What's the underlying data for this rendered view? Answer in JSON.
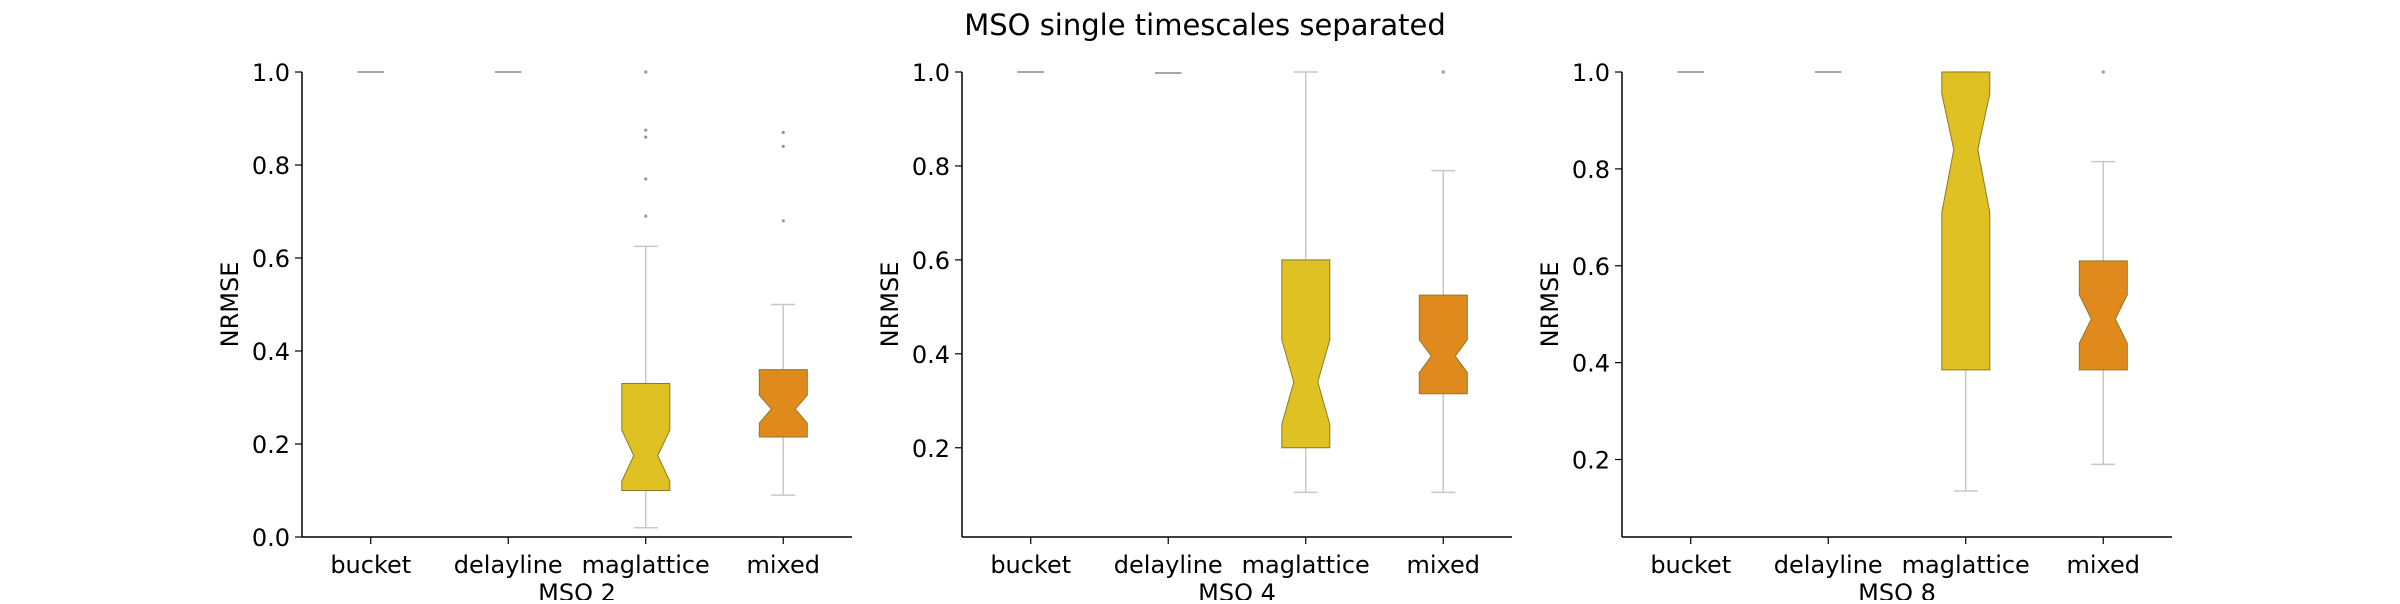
{
  "figure": {
    "title": "MSO single timescales separated"
  },
  "colors": {
    "axis": "#000000",
    "whisker": "#c8c8c8",
    "box_stroke": "#8a7a2a",
    "maglattice": "#dfc124",
    "mixed": "#e08a1e",
    "flier": "#999999"
  },
  "chart_data": [
    {
      "type": "box",
      "xlabel": "MSO 2",
      "ylabel": "NRMSE",
      "ylim": [
        0.0,
        1.0
      ],
      "yticks": [
        "0.0",
        "0.2",
        "0.4",
        "0.6",
        "0.8",
        "1.0"
      ],
      "ytick_values": [
        0.0,
        0.2,
        0.4,
        0.6,
        0.8,
        1.0
      ],
      "categories": [
        "bucket",
        "delayline",
        "maglattice",
        "mixed"
      ],
      "boxes": [
        {
          "category": "bucket",
          "min": 1.0,
          "q1": 1.0,
          "median": 1.0,
          "q3": 1.0,
          "max": 1.0,
          "notch_low": 1.0,
          "notch_high": 1.0,
          "fliers": [],
          "color": ""
        },
        {
          "category": "delayline",
          "min": 1.0,
          "q1": 1.0,
          "median": 1.0,
          "q3": 1.0,
          "max": 1.0,
          "notch_low": 1.0,
          "notch_high": 1.0,
          "fliers": [],
          "color": ""
        },
        {
          "category": "maglattice",
          "min": 0.02,
          "q1": 0.1,
          "median": 0.175,
          "q3": 0.33,
          "max": 0.625,
          "notch_low": 0.12,
          "notch_high": 0.23,
          "fliers": [
            0.69,
            0.77,
            0.86,
            0.875,
            1.0
          ],
          "color": "maglattice"
        },
        {
          "category": "mixed",
          "min": 0.09,
          "q1": 0.215,
          "median": 0.275,
          "q3": 0.36,
          "max": 0.5,
          "notch_low": 0.245,
          "notch_high": 0.305,
          "fliers": [
            0.68,
            0.84,
            0.87
          ],
          "color": "mixed"
        }
      ]
    },
    {
      "type": "box",
      "xlabel": "MSO 4",
      "ylabel": "NRMSE",
      "ylim": [
        0.01,
        1.0
      ],
      "yticks": [
        "0.2",
        "0.4",
        "0.6",
        "0.8",
        "1.0"
      ],
      "ytick_values": [
        0.2,
        0.4,
        0.6,
        0.8,
        1.0
      ],
      "categories": [
        "bucket",
        "delayline",
        "maglattice",
        "mixed"
      ],
      "boxes": [
        {
          "category": "bucket",
          "min": 1.0,
          "q1": 1.0,
          "median": 1.0,
          "q3": 1.0,
          "max": 1.0,
          "notch_low": 1.0,
          "notch_high": 1.0,
          "fliers": [],
          "color": ""
        },
        {
          "category": "delayline",
          "min": 0.998,
          "q1": 0.998,
          "median": 0.998,
          "q3": 0.998,
          "max": 0.998,
          "notch_low": 0.998,
          "notch_high": 0.998,
          "fliers": [],
          "color": ""
        },
        {
          "category": "maglattice",
          "min": 0.105,
          "q1": 0.2,
          "median": 0.34,
          "q3": 0.6,
          "max": 1.0,
          "notch_low": 0.25,
          "notch_high": 0.43,
          "fliers": [],
          "color": "maglattice"
        },
        {
          "category": "mixed",
          "min": 0.105,
          "q1": 0.315,
          "median": 0.395,
          "q3": 0.525,
          "max": 0.79,
          "notch_low": 0.36,
          "notch_high": 0.43,
          "fliers": [
            1.0
          ],
          "color": "mixed"
        }
      ]
    },
    {
      "type": "box",
      "xlabel": "MSO 8",
      "ylabel": "NRMSE",
      "ylim": [
        0.04,
        1.0
      ],
      "yticks": [
        "0.2",
        "0.4",
        "0.6",
        "0.8",
        "1.0"
      ],
      "ytick_values": [
        0.2,
        0.4,
        0.6,
        0.8,
        1.0
      ],
      "categories": [
        "bucket",
        "delayline",
        "maglattice",
        "mixed"
      ],
      "boxes": [
        {
          "category": "bucket",
          "min": 1.0,
          "q1": 1.0,
          "median": 1.0,
          "q3": 1.0,
          "max": 1.0,
          "notch_low": 1.0,
          "notch_high": 1.0,
          "fliers": [],
          "color": ""
        },
        {
          "category": "delayline",
          "min": 1.0,
          "q1": 1.0,
          "median": 1.0,
          "q3": 1.0,
          "max": 1.0,
          "notch_low": 1.0,
          "notch_high": 1.0,
          "fliers": [],
          "color": ""
        },
        {
          "category": "maglattice",
          "min": 0.135,
          "q1": 0.385,
          "median": 0.84,
          "q3": 1.0,
          "max": 1.0,
          "notch_low": 0.71,
          "notch_high": 0.955,
          "fliers": [],
          "color": "maglattice"
        },
        {
          "category": "mixed",
          "min": 0.19,
          "q1": 0.385,
          "median": 0.49,
          "q3": 0.61,
          "max": 0.815,
          "notch_low": 0.44,
          "notch_high": 0.54,
          "fliers": [
            1.0
          ],
          "color": "mixed"
        }
      ]
    }
  ]
}
